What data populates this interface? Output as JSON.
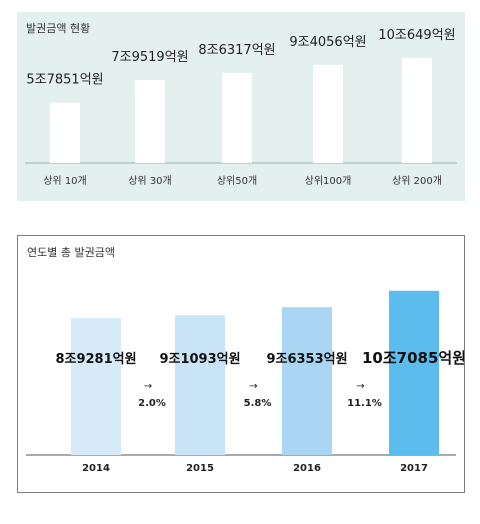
{
  "chart_data": [
    {
      "type": "bar",
      "title": "발권금액 현황",
      "categories": [
        "상위 10개",
        "상위 30개",
        "상위50개",
        "상위100개",
        "상위 200개"
      ],
      "value_labels": [
        "5조7851억원",
        "7조9519억원",
        "8조6317억원",
        "9조4056억원",
        "10조649억원"
      ],
      "values": [
        57851,
        79519,
        86317,
        94056,
        100649
      ],
      "unit": "억원",
      "ylim": [
        0,
        115000
      ],
      "grid": false,
      "colors": {
        "bar": "#ffffff",
        "background": "#e3f0ee",
        "axis": "#8fb8b3"
      }
    },
    {
      "type": "bar",
      "title": "연도별 총 발권금액",
      "categories": [
        "2014",
        "2015",
        "2016",
        "2017"
      ],
      "value_labels": [
        "8조9281억원",
        "9조1093억원",
        "9조6353억원",
        "10조7085억원"
      ],
      "values": [
        89281,
        91093,
        96353,
        107085
      ],
      "unit": "억원",
      "growth_labels": [
        "2.0%",
        "5.8%",
        "11.1%"
      ],
      "arrow_glyph": "→",
      "ylim": [
        0,
        120000
      ],
      "grid": false,
      "colors": {
        "bars": [
          "#d6eaf8",
          "#c9e4f7",
          "#a8d6f3",
          "#5cbcee"
        ],
        "axis": "#555555"
      }
    }
  ]
}
